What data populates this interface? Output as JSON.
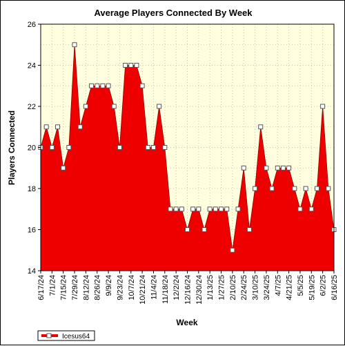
{
  "chart_data": {
    "type": "area",
    "title": "Average Players Connected By Week",
    "xlabel": "Week",
    "ylabel": "Players Connected",
    "ylim": [
      14,
      26
    ],
    "yticks": [
      14,
      16,
      18,
      20,
      22,
      24,
      26
    ],
    "grid": true,
    "legend_position": "bottom-left",
    "tick_labels": [
      "6/17/24",
      "7/1/24",
      "7/15/24",
      "7/29/24",
      "8/12/24",
      "8/26/24",
      "9/9/24",
      "9/23/24",
      "10/7/24",
      "10/21/24",
      "11/4/24",
      "11/18/24",
      "12/2/24",
      "12/16/24",
      "12/30/24",
      "1/13/25",
      "1/27/25",
      "2/10/25",
      "2/24/25",
      "3/10/25",
      "3/24/25",
      "4/7/25",
      "4/21/25",
      "5/5/25",
      "5/19/25",
      "6/2/25",
      "6/16/25"
    ],
    "series": [
      {
        "name": "Icesus64",
        "color": "#ee0000",
        "values": [
          20,
          21,
          20,
          21,
          19,
          20,
          25,
          21,
          22,
          23,
          23,
          23,
          23,
          22,
          20,
          24,
          24,
          24,
          23,
          20,
          20,
          22,
          20,
          17,
          17,
          17,
          16,
          17,
          17,
          16,
          17,
          17,
          17,
          17,
          15,
          17,
          19,
          16,
          18,
          21,
          19,
          18,
          19,
          19,
          19,
          18,
          17,
          18,
          17,
          18,
          22,
          18,
          16
        ]
      }
    ]
  }
}
